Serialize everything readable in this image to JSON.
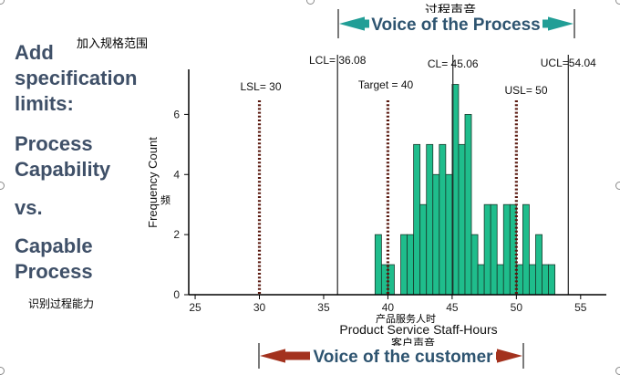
{
  "slide": {
    "title_lines": [
      "Add",
      "specification",
      "limits:",
      "Process",
      "Capability",
      "vs.",
      "Capable",
      "Process"
    ],
    "cn_spec_note": "加入规格范围",
    "cn_capability_note": "识别过程能力",
    "cn_freq_note": "频",
    "cn_voice_process": "过程声音",
    "cn_hours": "产品服务人时",
    "cn_customer": "客户声音",
    "voice_of_process": "Voice of the Process",
    "voice_of_customer": "Voice of the customer",
    "colors": {
      "bar_fill": "#1fbd8c",
      "bar_stroke": "#1a3a2c",
      "spec_line": "#5a1a10",
      "arrow_process": "#219e96",
      "arrow_customer": "#a3321e",
      "title_text": "#3f5068",
      "voice_text": "#2e5470"
    }
  },
  "chart_data": {
    "type": "bar",
    "title": "",
    "xlabel": "Product Service Staff-Hours",
    "ylabel": "Frequency Count",
    "xlim": [
      24.5,
      57
    ],
    "ylim": [
      0,
      7.5
    ],
    "xticks": [
      25,
      30,
      35,
      40,
      45,
      50,
      55
    ],
    "yticks": [
      0,
      2,
      4,
      6
    ],
    "bin_width": 0.5,
    "bins": [
      {
        "x": 39.0,
        "count": 2
      },
      {
        "x": 39.5,
        "count": 1
      },
      {
        "x": 40.0,
        "count": 1
      },
      {
        "x": 40.5,
        "count": 0
      },
      {
        "x": 41.0,
        "count": 2
      },
      {
        "x": 41.5,
        "count": 2
      },
      {
        "x": 42.0,
        "count": 5
      },
      {
        "x": 42.5,
        "count": 3
      },
      {
        "x": 43.0,
        "count": 5
      },
      {
        "x": 43.5,
        "count": 4
      },
      {
        "x": 44.0,
        "count": 5
      },
      {
        "x": 44.5,
        "count": 4
      },
      {
        "x": 45.0,
        "count": 7
      },
      {
        "x": 45.5,
        "count": 5
      },
      {
        "x": 46.0,
        "count": 6
      },
      {
        "x": 46.5,
        "count": 2
      },
      {
        "x": 47.0,
        "count": 1
      },
      {
        "x": 47.5,
        "count": 3
      },
      {
        "x": 48.0,
        "count": 3
      },
      {
        "x": 48.5,
        "count": 1
      },
      {
        "x": 49.0,
        "count": 3
      },
      {
        "x": 49.5,
        "count": 3
      },
      {
        "x": 50.0,
        "count": 1
      },
      {
        "x": 50.5,
        "count": 3
      },
      {
        "x": 51.0,
        "count": 1
      },
      {
        "x": 51.5,
        "count": 2
      },
      {
        "x": 52.0,
        "count": 1
      },
      {
        "x": 52.5,
        "count": 1
      }
    ],
    "control_lines": [
      {
        "label": "LCL= 36.08",
        "value": 36.08
      },
      {
        "label": "CL= 45.06",
        "value": 45.06
      },
      {
        "label": "UCL=54.04",
        "value": 54.04
      }
    ],
    "spec_lines": [
      {
        "label": "LSL= 30",
        "value": 30
      },
      {
        "label": "Target = 40",
        "value": 40
      },
      {
        "label": "USL= 50",
        "value": 50
      }
    ],
    "grid": false
  }
}
